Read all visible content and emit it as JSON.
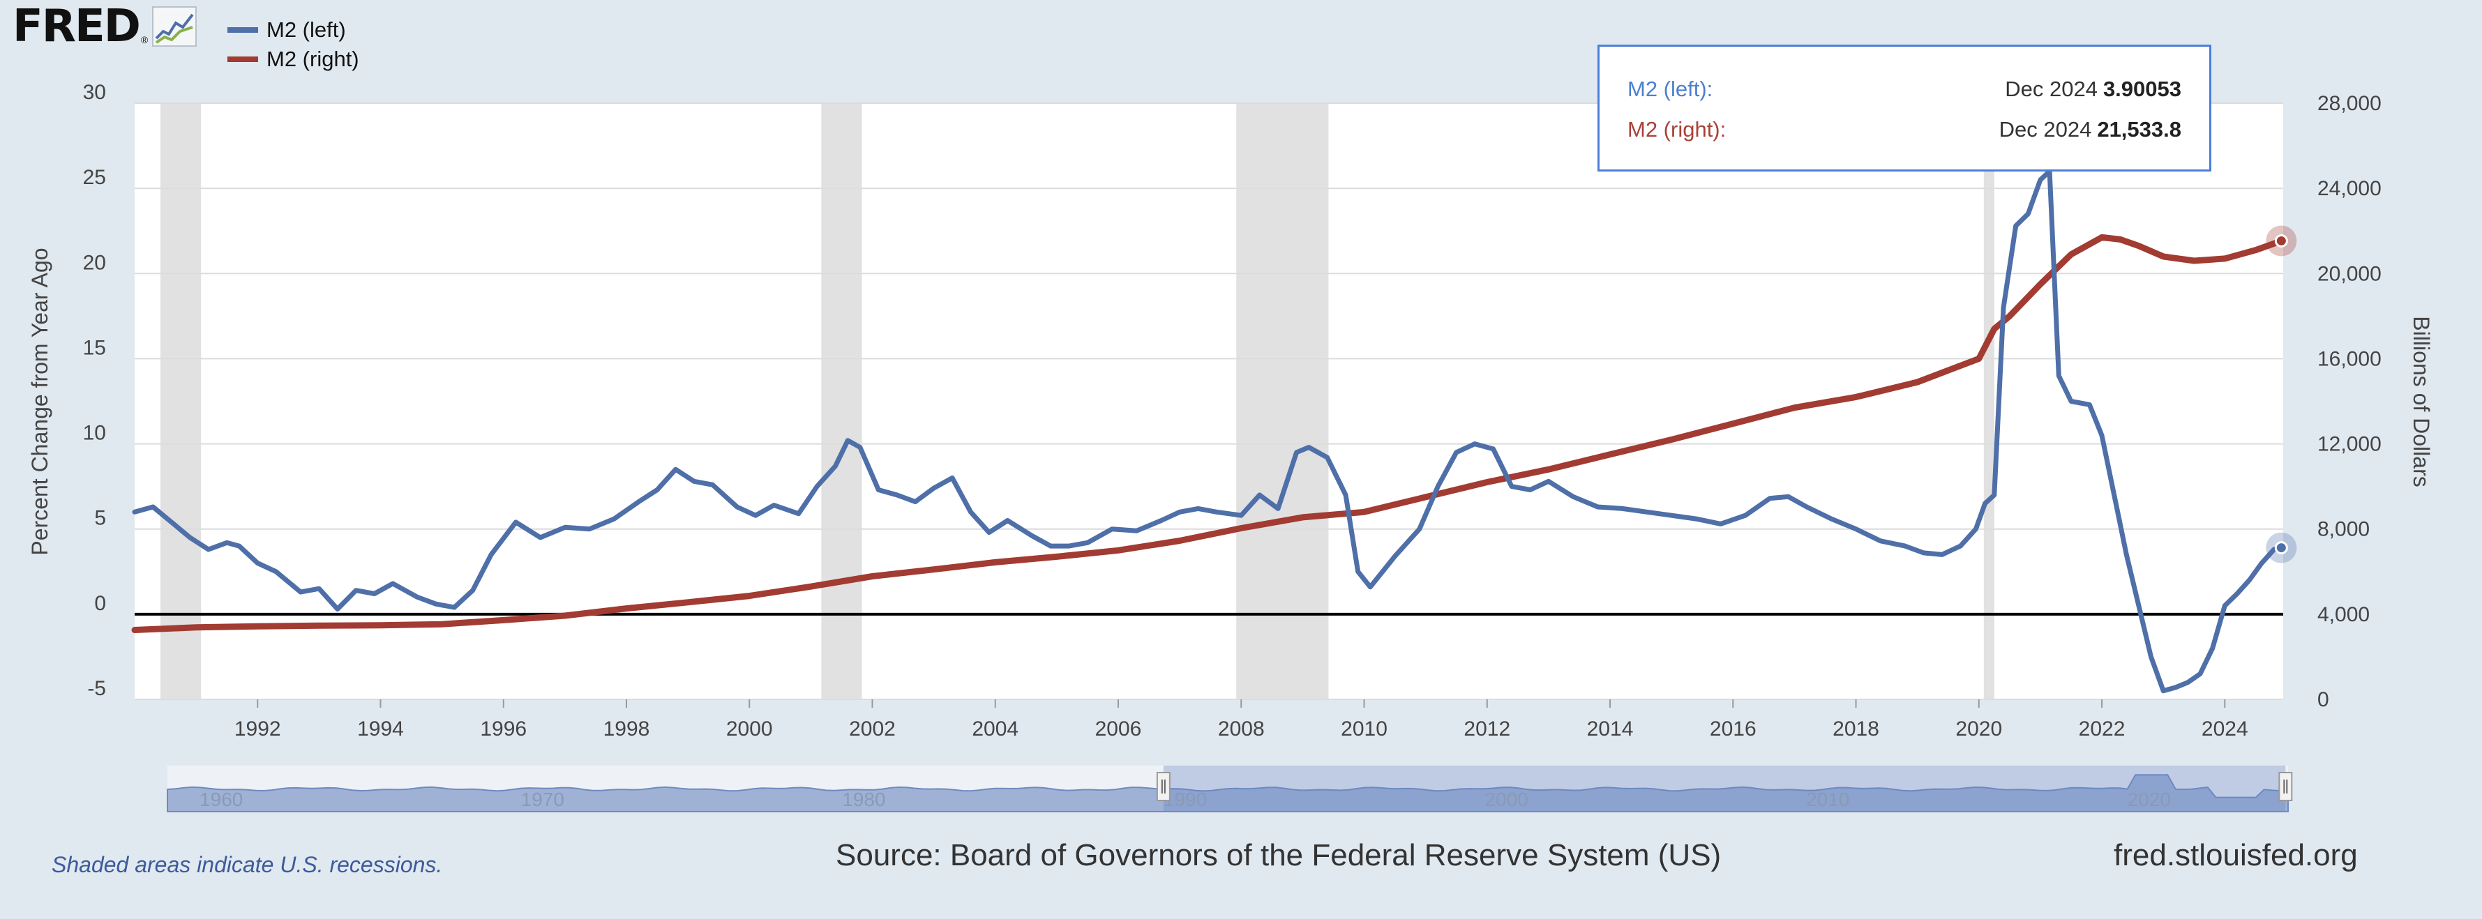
{
  "logo": {
    "text": "FRED",
    "reg": "®"
  },
  "legend": [
    {
      "label": "M2 (left)",
      "color": "#4e6fa8"
    },
    {
      "label": "M2 (right)",
      "color": "#a23b31"
    }
  ],
  "tooltip": {
    "left": {
      "name": "M2 (left):",
      "date": "Dec 2024",
      "value": "3.90053",
      "color": "#4b7fcf"
    },
    "right": {
      "name": "M2 (right):",
      "date": "Dec 2024",
      "value": "21,533.8",
      "color": "#a84236"
    }
  },
  "footer": {
    "note": "Shaded areas indicate U.S. recessions.",
    "source": "Source: Board of Governors of the Federal Reserve System (US)",
    "site": "fred.stlouisfed.org"
  },
  "navigator": {
    "labels": [
      "1960",
      "1970",
      "1980",
      "1990",
      "2000",
      "2010",
      "2020"
    ],
    "selection_start": 1990.0,
    "selection_end": 2024.92
  },
  "colors": {
    "background": "#e1e9f0",
    "plot": "#ffffff",
    "recession": "#e1e1e1",
    "zero_line": "#000000"
  },
  "chart_data": {
    "type": "line",
    "xlim": [
      1990.0,
      2024.95
    ],
    "x_ticks": [
      "1992",
      "1994",
      "1996",
      "1998",
      "2000",
      "2002",
      "2004",
      "2006",
      "2008",
      "2010",
      "2012",
      "2014",
      "2016",
      "2018",
      "2020",
      "2022",
      "2024"
    ],
    "y_left": {
      "label": "Percent Change from Year Ago",
      "ylim": [
        -5,
        30
      ],
      "ticks": [
        "-5",
        "0",
        "5",
        "10",
        "15",
        "20",
        "25",
        "30"
      ]
    },
    "y_right": {
      "label": "Billions of Dollars",
      "ylim": [
        0,
        28000
      ],
      "ticks": [
        "0",
        "4,000",
        "8,000",
        "12,000",
        "16,000",
        "20,000",
        "24,000",
        "28,000"
      ]
    },
    "recessions": [
      [
        1990.42,
        1991.08
      ],
      [
        2001.17,
        2001.83
      ],
      [
        2007.92,
        2009.42
      ],
      [
        2020.08,
        2020.25
      ]
    ],
    "series": [
      {
        "name": "M2 (left)",
        "axis": "left",
        "color": "#4e6fa8",
        "x": [
          1990.0,
          1990.3,
          1990.6,
          1990.9,
          1991.2,
          1991.5,
          1991.7,
          1992.0,
          1992.3,
          1992.7,
          1993.0,
          1993.3,
          1993.6,
          1993.9,
          1994.2,
          1994.6,
          1994.9,
          1995.2,
          1995.5,
          1995.8,
          1996.2,
          1996.6,
          1997.0,
          1997.4,
          1997.8,
          1998.2,
          1998.5,
          1998.8,
          1999.1,
          1999.4,
          1999.8,
          2000.1,
          2000.4,
          2000.8,
          2001.1,
          2001.4,
          2001.6,
          2001.8,
          2002.1,
          2002.4,
          2002.7,
          2003.0,
          2003.3,
          2003.6,
          2003.9,
          2004.2,
          2004.6,
          2004.9,
          2005.2,
          2005.5,
          2005.9,
          2006.3,
          2006.7,
          2007.0,
          2007.3,
          2007.6,
          2008.0,
          2008.3,
          2008.6,
          2008.9,
          2009.1,
          2009.4,
          2009.7,
          2009.9,
          2010.1,
          2010.5,
          2010.9,
          2011.2,
          2011.5,
          2011.8,
          2012.1,
          2012.4,
          2012.7,
          2013.0,
          2013.4,
          2013.8,
          2014.2,
          2014.6,
          2015.0,
          2015.4,
          2015.8,
          2016.2,
          2016.6,
          2016.9,
          2017.2,
          2017.6,
          2018.0,
          2018.4,
          2018.8,
          2019.1,
          2019.4,
          2019.7,
          2019.95,
          2020.1,
          2020.25,
          2020.4,
          2020.6,
          2020.8,
          2021.0,
          2021.15,
          2021.3,
          2021.5,
          2021.8,
          2022.0,
          2022.2,
          2022.4,
          2022.6,
          2022.8,
          2023.0,
          2023.2,
          2023.4,
          2023.6,
          2023.8,
          2024.0,
          2024.2,
          2024.4,
          2024.6,
          2024.8,
          2024.92
        ],
        "y": [
          6.0,
          6.3,
          5.4,
          4.5,
          3.8,
          4.2,
          4.0,
          3.0,
          2.5,
          1.3,
          1.5,
          0.3,
          1.4,
          1.2,
          1.8,
          1.0,
          0.6,
          0.4,
          1.4,
          3.5,
          5.4,
          4.5,
          5.1,
          5.0,
          5.6,
          6.6,
          7.3,
          8.5,
          7.8,
          7.6,
          6.3,
          5.8,
          6.4,
          5.9,
          7.5,
          8.7,
          10.2,
          9.8,
          7.3,
          7.0,
          6.6,
          7.4,
          8.0,
          6.0,
          4.8,
          5.5,
          4.6,
          4.0,
          4.0,
          4.2,
          5.0,
          4.9,
          5.5,
          6.0,
          6.2,
          6.0,
          5.8,
          7.0,
          6.2,
          9.5,
          9.8,
          9.2,
          7.0,
          2.5,
          1.6,
          3.4,
          5.0,
          7.5,
          9.5,
          10.0,
          9.7,
          7.5,
          7.3,
          7.8,
          6.9,
          6.3,
          6.2,
          6.0,
          5.8,
          5.6,
          5.3,
          5.8,
          6.8,
          6.9,
          6.3,
          5.6,
          5.0,
          4.3,
          4.0,
          3.6,
          3.5,
          4.0,
          5.0,
          6.5,
          7.0,
          18.0,
          22.8,
          23.5,
          25.5,
          26.0,
          14.0,
          12.5,
          12.3,
          10.5,
          7.0,
          3.5,
          0.5,
          -2.5,
          -4.5,
          -4.3,
          -4.0,
          -3.5,
          -2.0,
          0.5,
          1.2,
          2.0,
          3.0,
          3.8,
          3.9
        ]
      },
      {
        "name": "M2 (right)",
        "axis": "right",
        "color": "#a23b31",
        "x": [
          1990.0,
          1991.0,
          1992.0,
          1993.0,
          1994.0,
          1995.0,
          1996.0,
          1997.0,
          1998.0,
          1999.0,
          2000.0,
          2001.0,
          2002.0,
          2003.0,
          2004.0,
          2005.0,
          2006.0,
          2007.0,
          2008.0,
          2009.0,
          2010.0,
          2011.0,
          2012.0,
          2013.0,
          2014.0,
          2015.0,
          2016.0,
          2017.0,
          2018.0,
          2019.0,
          2020.0,
          2020.25,
          2020.5,
          2021.0,
          2021.5,
          2022.0,
          2022.3,
          2022.6,
          2023.0,
          2023.5,
          2024.0,
          2024.5,
          2024.92
        ],
        "y": [
          3260,
          3380,
          3430,
          3460,
          3480,
          3530,
          3720,
          3930,
          4270,
          4560,
          4860,
          5300,
          5780,
          6100,
          6440,
          6700,
          7000,
          7450,
          8040,
          8550,
          8800,
          9500,
          10200,
          10800,
          11500,
          12200,
          12950,
          13700,
          14200,
          14900,
          16000,
          17400,
          18000,
          19500,
          20900,
          21700,
          21600,
          21300,
          20800,
          20600,
          20700,
          21100,
          21533.8
        ]
      }
    ]
  }
}
